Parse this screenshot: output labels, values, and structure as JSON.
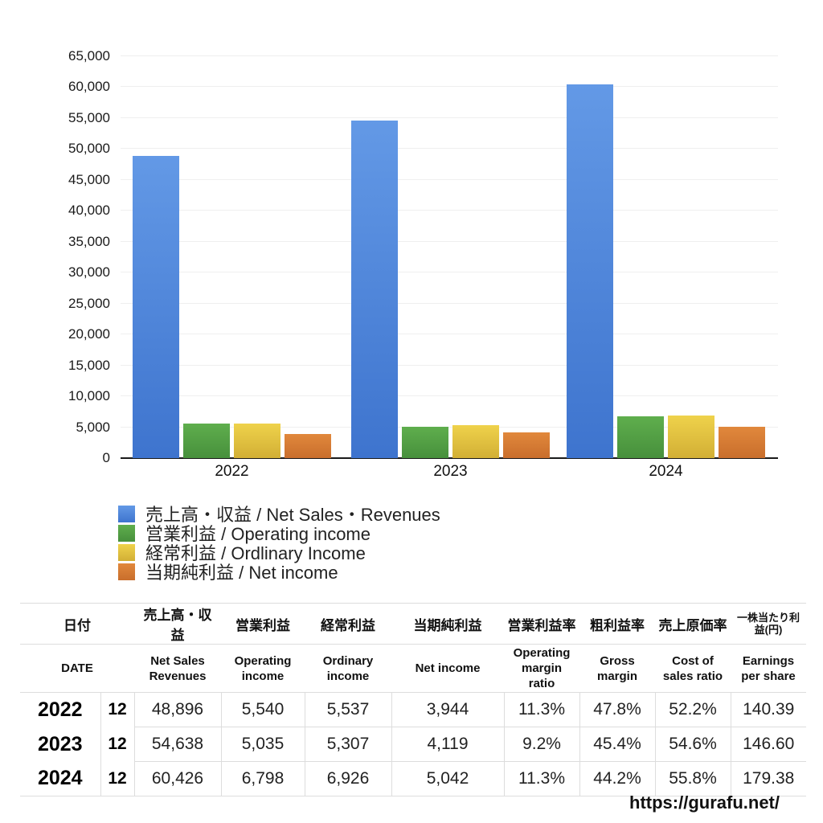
{
  "chart_data": {
    "type": "bar",
    "title": "",
    "categories": [
      "2022",
      "2023",
      "2024"
    ],
    "series": [
      {
        "name": "売上高・収益 / Net Sales・Revenues",
        "values": [
          48896,
          54638,
          60426
        ],
        "color_top": "#6399E6",
        "color_bottom": "#3E74CE"
      },
      {
        "name": "営業利益 / Operating income",
        "values": [
          5540,
          5035,
          6798
        ],
        "color_top": "#5FAE4D",
        "color_bottom": "#47903C"
      },
      {
        "name": "経常利益 / Ordlinary Income",
        "values": [
          5537,
          5307,
          6926
        ],
        "color_top": "#EFD24B",
        "color_bottom": "#D2AF35"
      },
      {
        "name": "当期純利益 / Net income",
        "values": [
          3944,
          4119,
          5042
        ],
        "color_top": "#E1883C",
        "color_bottom": "#C96E2C"
      }
    ],
    "xlabel": "",
    "ylabel": "",
    "ylim": [
      0,
      65000
    ],
    "ytick_step": 5000,
    "ytick_labels": [
      "0",
      "5,000",
      "10,000",
      "15,000",
      "20,000",
      "25,000",
      "30,000",
      "35,000",
      "40,000",
      "45,000",
      "50,000",
      "55,000",
      "60,000",
      "65,000"
    ],
    "grid": "horizontal",
    "legend_position": "bottom-left"
  },
  "table": {
    "headers_jp": [
      "日付",
      "売上高・収益",
      "営業利益",
      "経常利益",
      "当期純利益",
      "営業利益率",
      "粗利益率",
      "売上原価率",
      "一株当たり利益(円)"
    ],
    "headers_en": [
      "DATE",
      "Net Sales Revenues",
      "Operating income",
      "Ordinary income",
      "Net income",
      "Operating margin ratio",
      "Gross margin",
      "Cost of sales ratio",
      "Earnings per share"
    ],
    "rows": [
      {
        "year": "2022",
        "month": "12",
        "values": [
          "48,896",
          "5,540",
          "5,537",
          "3,944",
          "11.3%",
          "47.8%",
          "52.2%",
          "140.39"
        ]
      },
      {
        "year": "2023",
        "month": "12",
        "values": [
          "54,638",
          "5,035",
          "5,307",
          "4,119",
          "9.2%",
          "45.4%",
          "54.6%",
          "146.60"
        ]
      },
      {
        "year": "2024",
        "month": "12",
        "values": [
          "60,426",
          "6,798",
          "6,926",
          "5,042",
          "11.3%",
          "44.2%",
          "55.8%",
          "179.38"
        ]
      }
    ]
  },
  "footer": {
    "url": "https://gurafu.net/"
  }
}
